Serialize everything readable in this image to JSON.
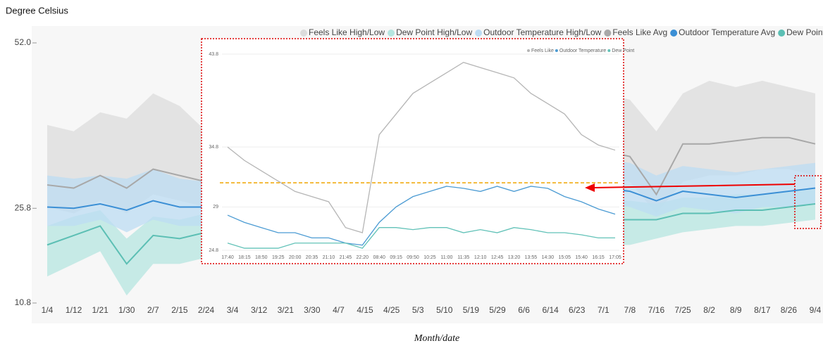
{
  "chart_data": [
    {
      "type": "line",
      "y_label": "Degree Celsius",
      "x_label": "Month/date",
      "categories": [
        "1/4",
        "1/12",
        "1/21",
        "1/30",
        "2/7",
        "2/15",
        "2/24",
        "3/4",
        "3/12",
        "3/21",
        "3/30",
        "4/7",
        "4/15",
        "4/25",
        "5/3",
        "5/10",
        "5/19",
        "5/29",
        "6/6",
        "6/14",
        "6/23",
        "7/1",
        "7/8",
        "7/16",
        "7/25",
        "8/2",
        "8/9",
        "8/17",
        "8/26",
        "9/4"
      ],
      "ylim": [
        10.8,
        52.0
      ],
      "yticks": [
        {
          "value": 10.8,
          "label": "10.8"
        },
        {
          "value": 25.8,
          "label": "25.8"
        },
        {
          "value": 52.0,
          "label": "52.0"
        }
      ],
      "grid": false,
      "legend": "top-right",
      "bands": [
        {
          "name": "Feels Like High/Low",
          "color": "#dcdcdc",
          "high": [
            39,
            38,
            41,
            40,
            44,
            42,
            38,
            40,
            41,
            42,
            43,
            44,
            45,
            46,
            47,
            47,
            48,
            48,
            47,
            46,
            45,
            44,
            43,
            38,
            44,
            46,
            45,
            46,
            45,
            44
          ],
          "low": [
            26,
            25,
            27,
            25,
            28,
            27,
            26,
            27,
            28,
            29,
            30,
            31,
            32,
            33,
            34,
            34,
            35,
            35,
            34,
            33,
            32,
            31,
            30,
            25,
            30,
            31,
            31,
            32,
            32,
            31
          ]
        },
        {
          "name": "Dew Point High/Low",
          "color": "#b5e6e0",
          "high": [
            23,
            24.5,
            25.5,
            21,
            24.5,
            24,
            25,
            25,
            25.5,
            26,
            26,
            26,
            26.5,
            27,
            27,
            27.5,
            27.5,
            27.5,
            27.5,
            27,
            27,
            27,
            27,
            26.5,
            27.5,
            27.5,
            28,
            28,
            28.5,
            29
          ],
          "low": [
            15,
            17,
            19,
            12,
            17,
            17,
            18,
            18,
            18.5,
            19,
            19,
            19,
            19.5,
            20,
            20,
            20.5,
            20.5,
            20.5,
            20.5,
            20,
            20,
            20,
            20,
            21,
            22,
            22.5,
            23,
            23,
            23.5,
            24
          ]
        },
        {
          "name": "Outdoor Temperature High/Low",
          "color": "#bcdcf3",
          "high": [
            31,
            30.5,
            31,
            30.5,
            32,
            30.5,
            30,
            31,
            31.5,
            32,
            32.5,
            32.5,
            33,
            33.5,
            34,
            34.5,
            35,
            35,
            35,
            34.5,
            34,
            33.5,
            33,
            31,
            32.5,
            32,
            31.5,
            32,
            32.5,
            33
          ],
          "low": [
            23,
            23,
            24,
            22,
            24,
            23,
            23,
            24,
            24.5,
            25,
            25.5,
            25.5,
            26,
            26.5,
            27,
            27.5,
            28,
            28,
            28,
            27.5,
            27,
            26.5,
            26,
            24.5,
            26,
            25.5,
            25,
            26,
            26,
            26.5
          ]
        }
      ],
      "series": [
        {
          "name": "Feels Like Avg",
          "color": "#a8a8a8",
          "values": [
            29.5,
            29,
            31,
            29,
            32,
            31,
            30,
            31,
            32,
            33,
            34,
            35,
            36,
            37,
            38,
            38,
            39,
            39,
            38,
            37,
            36,
            35,
            34,
            28,
            36,
            36,
            36.5,
            37,
            37,
            36
          ]
        },
        {
          "name": "Outdoor Temperature Avg",
          "color": "#3b8fd5",
          "values": [
            26,
            25.8,
            26.5,
            25.5,
            27,
            26,
            26,
            26.5,
            27,
            27.5,
            28,
            28,
            28.5,
            29,
            29.5,
            30,
            30.5,
            30.5,
            30.5,
            30,
            29.5,
            29,
            28.5,
            27,
            28.5,
            28,
            27.5,
            28,
            28.5,
            29
          ]
        },
        {
          "name": "Dew Point Avg",
          "color": "#5cbfb4",
          "values": [
            20,
            21.5,
            23,
            17,
            21.5,
            21,
            22,
            22,
            22.5,
            23,
            23,
            23,
            23.5,
            24,
            24,
            24.5,
            24.5,
            24.5,
            24.5,
            24,
            24,
            24,
            24,
            24,
            25,
            25,
            25.5,
            25.5,
            26,
            26.5
          ]
        }
      ]
    },
    {
      "type": "line",
      "categories": [
        "17:40",
        "18:15",
        "18:50",
        "19:25",
        "20:00",
        "20:35",
        "21:10",
        "21:45",
        "22:20",
        "08:40",
        "09:15",
        "09:50",
        "10:25",
        "11:00",
        "11:35",
        "12:10",
        "12:45",
        "13:20",
        "13:55",
        "14:30",
        "15:05",
        "15:40",
        "16:15",
        "17:05"
      ],
      "ylim": [
        24.8,
        43.8
      ],
      "yticks": [
        24.8,
        29.0,
        34.8,
        43.8
      ],
      "grid": true,
      "legend": "top-right",
      "bands": [],
      "series": [
        {
          "name": "Feels Like",
          "color": "#b5b5b5",
          "values": [
            34.8,
            33.5,
            32.5,
            31.5,
            30.5,
            30,
            29.5,
            27,
            26.5,
            36,
            38,
            40,
            41,
            42,
            43,
            42.5,
            42,
            41.5,
            40,
            39,
            38,
            36,
            35,
            34.5
          ]
        },
        {
          "name": "Outdoor Temperature",
          "color": "#4b9bd3",
          "values": [
            28.2,
            27.5,
            27,
            26.5,
            26.5,
            26,
            26,
            25.5,
            25.3,
            27.5,
            29,
            30,
            30.5,
            31,
            30.8,
            30.5,
            31,
            30.5,
            31,
            30.8,
            30,
            29.5,
            28.8,
            28.3
          ]
        },
        {
          "name": "Dew Point",
          "color": "#62c2b8",
          "values": [
            25.5,
            25,
            25,
            25,
            25.5,
            25.5,
            25.5,
            25.5,
            25,
            27,
            27,
            26.8,
            27,
            27,
            26.5,
            26.8,
            26.5,
            27,
            26.8,
            26.5,
            26.5,
            26.3,
            26,
            26
          ]
        }
      ]
    }
  ]
}
